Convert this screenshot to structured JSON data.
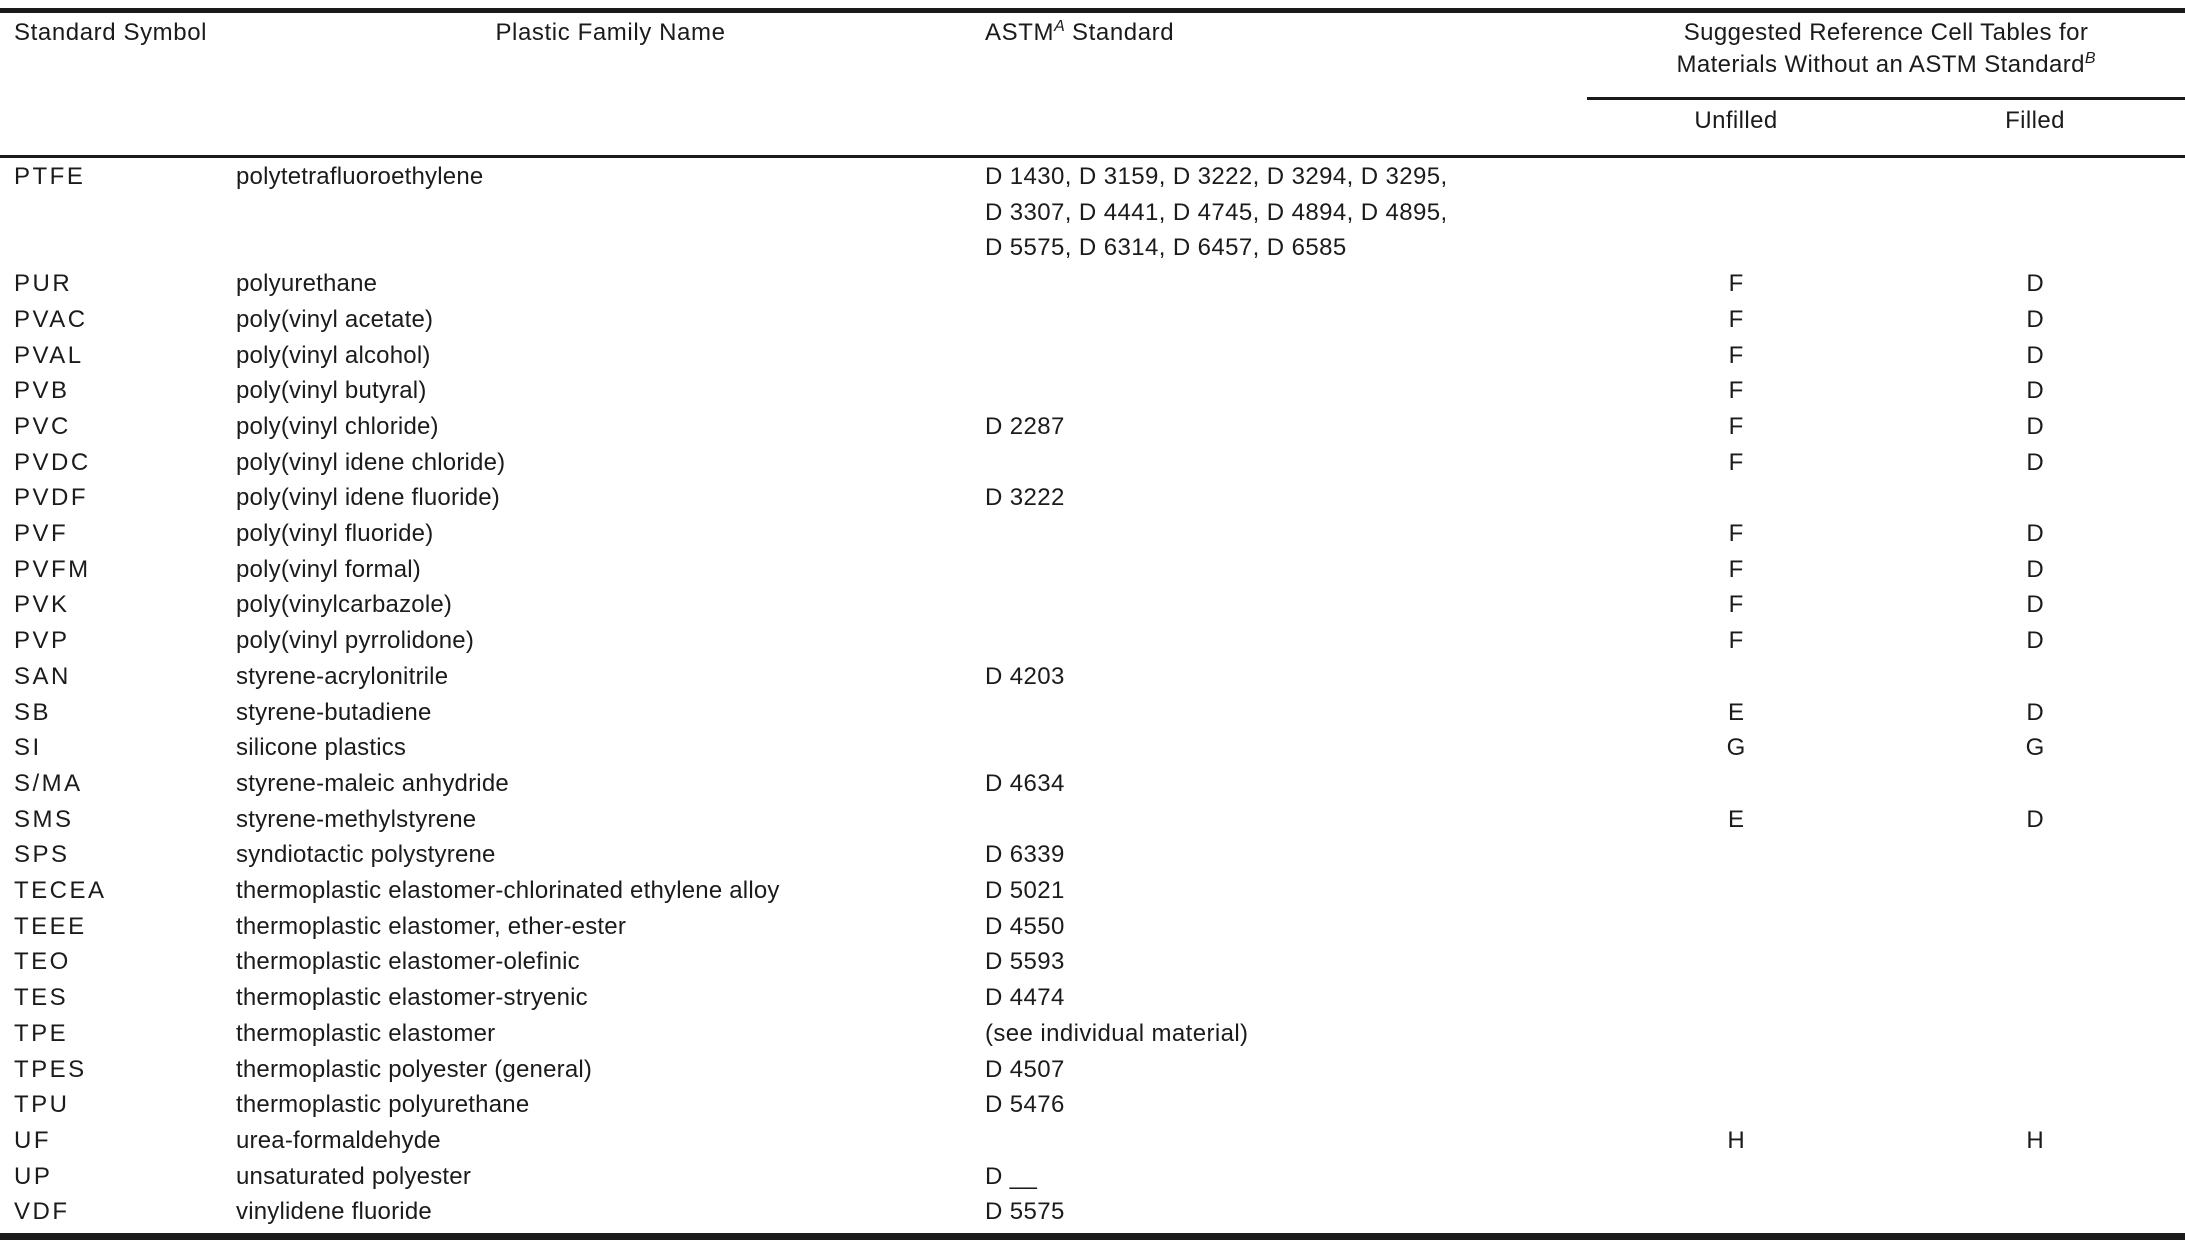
{
  "colors": {
    "background": "#ffffff",
    "text": "#1b1b1b",
    "rule": "#1a1a1a"
  },
  "table": {
    "headers": {
      "standard_symbol": "Standard Symbol",
      "plastic_family_name": "Plastic Family Name",
      "astm_base": "ASTM",
      "astm_sup": "A",
      "astm_rest": " Standard",
      "group_line1": "Suggested Reference Cell Tables for",
      "group_line2": "Materials Without an ASTM Standard",
      "group_sup": "B",
      "unfilled": "Unfilled",
      "filled": "Filled"
    },
    "rows": [
      {
        "symbol": "PTFE",
        "family": "polytetrafluoroethylene",
        "astm": "D 1430, D 3159, D 3222, D 3294, D 3295,\nD 3307, D 4441, D 4745, D 4894, D 4895,\nD 5575, D 6314, D 6457, D 6585",
        "unfilled": "",
        "filled": ""
      },
      {
        "symbol": "PUR",
        "family": "polyurethane",
        "astm": "",
        "unfilled": "F",
        "filled": "D"
      },
      {
        "symbol": "PVAC",
        "family": "poly(vinyl acetate)",
        "astm": "",
        "unfilled": "F",
        "filled": "D"
      },
      {
        "symbol": "PVAL",
        "family": "poly(vinyl alcohol)",
        "astm": "",
        "unfilled": "F",
        "filled": "D"
      },
      {
        "symbol": "PVB",
        "family": "poly(vinyl butyral)",
        "astm": "",
        "unfilled": "F",
        "filled": "D"
      },
      {
        "symbol": "PVC",
        "family": "poly(vinyl chloride)",
        "astm": "D 2287",
        "unfilled": "F",
        "filled": "D"
      },
      {
        "symbol": "PVDC",
        "family": "poly(vinyl idene chloride)",
        "astm": "",
        "unfilled": "F",
        "filled": "D"
      },
      {
        "symbol": "PVDF",
        "family": "poly(vinyl idene fluoride)",
        "astm": "D 3222",
        "unfilled": "",
        "filled": ""
      },
      {
        "symbol": "PVF",
        "family": "poly(vinyl fluoride)",
        "astm": "",
        "unfilled": "F",
        "filled": "D"
      },
      {
        "symbol": "PVFM",
        "family": "poly(vinyl formal)",
        "astm": "",
        "unfilled": "F",
        "filled": "D"
      },
      {
        "symbol": "PVK",
        "family": "poly(vinylcarbazole)",
        "astm": "",
        "unfilled": "F",
        "filled": "D"
      },
      {
        "symbol": "PVP",
        "family": "poly(vinyl pyrrolidone)",
        "astm": "",
        "unfilled": "F",
        "filled": "D"
      },
      {
        "symbol": "SAN",
        "family": "styrene-acrylonitrile",
        "astm": "D 4203",
        "unfilled": "",
        "filled": ""
      },
      {
        "symbol": "SB",
        "family": "styrene-butadiene",
        "astm": "",
        "unfilled": "E",
        "filled": "D"
      },
      {
        "symbol": "SI",
        "family": "silicone plastics",
        "astm": "",
        "unfilled": "G",
        "filled": "G"
      },
      {
        "symbol": "S/MA",
        "family": "styrene-maleic anhydride",
        "astm": "D 4634",
        "unfilled": "",
        "filled": ""
      },
      {
        "symbol": "SMS",
        "family": "styrene-methylstyrene",
        "astm": "",
        "unfilled": "E",
        "filled": "D"
      },
      {
        "symbol": "SPS",
        "family": "syndiotactic polystyrene",
        "astm": "D 6339",
        "unfilled": "",
        "filled": ""
      },
      {
        "symbol": "TECEA",
        "family": "thermoplastic elastomer-chlorinated ethylene alloy",
        "astm": "D 5021",
        "unfilled": "",
        "filled": ""
      },
      {
        "symbol": "TEEE",
        "family": "thermoplastic elastomer, ether-ester",
        "astm": "D 4550",
        "unfilled": "",
        "filled": ""
      },
      {
        "symbol": "TEO",
        "family": "thermoplastic elastomer-olefinic",
        "astm": "D 5593",
        "unfilled": "",
        "filled": ""
      },
      {
        "symbol": "TES",
        "family": "thermoplastic elastomer-stryenic",
        "astm": "D 4474",
        "unfilled": "",
        "filled": ""
      },
      {
        "symbol": "TPE",
        "family": "thermoplastic elastomer",
        "astm": "(see individual material)",
        "unfilled": "",
        "filled": ""
      },
      {
        "symbol": "TPES",
        "family": "thermoplastic polyester (general)",
        "astm": "D 4507",
        "unfilled": "",
        "filled": ""
      },
      {
        "symbol": "TPU",
        "family": "thermoplastic polyurethane",
        "astm": "D 5476",
        "unfilled": "",
        "filled": ""
      },
      {
        "symbol": "UF",
        "family": "urea-formaldehyde",
        "astm": "",
        "unfilled": "H",
        "filled": "H"
      },
      {
        "symbol": "UP",
        "family": "unsaturated polyester",
        "astm": "D __",
        "unfilled": "",
        "filled": ""
      },
      {
        "symbol": "VDF",
        "family": "vinylidene fluoride",
        "astm": "D 5575",
        "unfilled": "",
        "filled": ""
      }
    ]
  }
}
